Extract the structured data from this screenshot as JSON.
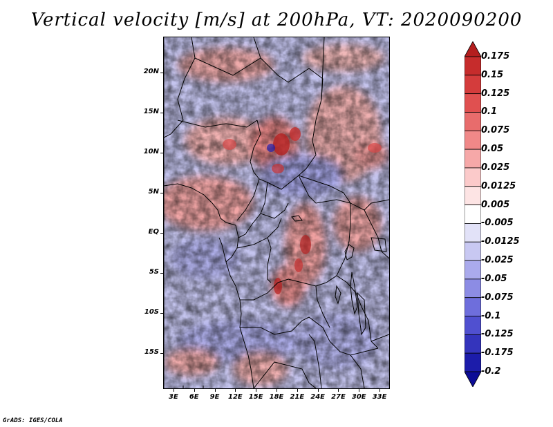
{
  "title": "Vertical velocity [m/s] at 200hPa, VT: 2020090200",
  "credit": "GrADS: IGES/COLA",
  "lat_labels": [
    "20N",
    "15N",
    "10N",
    "5N",
    "EQ",
    "5S",
    "10S",
    "15S"
  ],
  "lat_values": [
    20,
    15,
    10,
    5,
    0,
    -5,
    -10,
    -15
  ],
  "lon_labels": [
    "3E",
    "6E",
    "9E",
    "12E",
    "15E",
    "18E",
    "21E",
    "24E",
    "27E",
    "30E",
    "33E"
  ],
  "lon_values": [
    3,
    6,
    9,
    12,
    15,
    18,
    21,
    24,
    27,
    30,
    33
  ],
  "map_extent": {
    "lon_min": 1.5,
    "lon_max": 34.5,
    "lat_min": -19.5,
    "lat_max": 24.5
  },
  "colorbar": {
    "labels": [
      "0.175",
      "0.15",
      "0.125",
      "0.1",
      "0.075",
      "0.05",
      "0.025",
      "0.0125",
      "0.005",
      "-0.005",
      "-0.0125",
      "-0.025",
      "-0.05",
      "-0.075",
      "-0.1",
      "-0.125",
      "-0.175",
      "-0.2"
    ],
    "colors": [
      "#b41e1e",
      "#c62c2c",
      "#d43c3c",
      "#e05050",
      "#e86c6c",
      "#f08888",
      "#f6a8a8",
      "#fbcaca",
      "#fde4e4",
      "#ffffff",
      "#e2e2f8",
      "#c8c8f2",
      "#aaaaec",
      "#8c8ce4",
      "#6e6edc",
      "#5050d0",
      "#3434bc",
      "#1c1caa",
      "#0c0c96"
    ]
  },
  "colors": {
    "positive": "#d43c3c",
    "negative": "#5050d0",
    "neutral": "#ffffff"
  }
}
